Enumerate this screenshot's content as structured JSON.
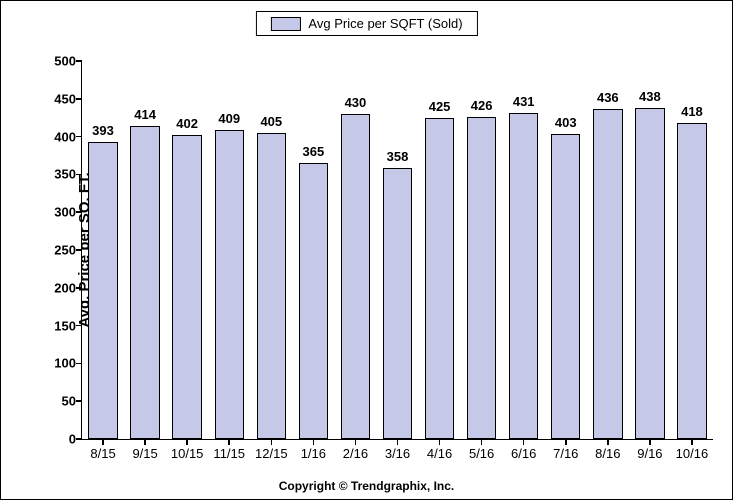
{
  "chart": {
    "type": "bar",
    "legend_label": "Avg Price per SQFT (Sold)",
    "ylabel": "Avg. Price per SQ. FT.",
    "copyright": "Copyright © Trendgraphix, Inc.",
    "ylim": [
      0,
      500
    ],
    "ytick_step": 50,
    "categories": [
      "8/15",
      "9/15",
      "10/15",
      "11/15",
      "12/15",
      "1/16",
      "2/16",
      "3/16",
      "4/16",
      "5/16",
      "6/16",
      "7/16",
      "8/16",
      "9/16",
      "10/16"
    ],
    "values": [
      393,
      414,
      402,
      409,
      405,
      365,
      430,
      358,
      425,
      426,
      431,
      403,
      436,
      438,
      418
    ],
    "bar_color": "#c6c8e7",
    "bar_border_color": "#000000",
    "legend_swatch_color": "#c6c8e7",
    "background_color": "#ffffff",
    "axis_color": "#000000",
    "bar_width_ratio": 0.7,
    "label_fontsize": 13,
    "label_fontweight": "bold",
    "ylabel_fontsize": 15,
    "xlabel_fontsize": 13,
    "font_family": "Arial"
  }
}
